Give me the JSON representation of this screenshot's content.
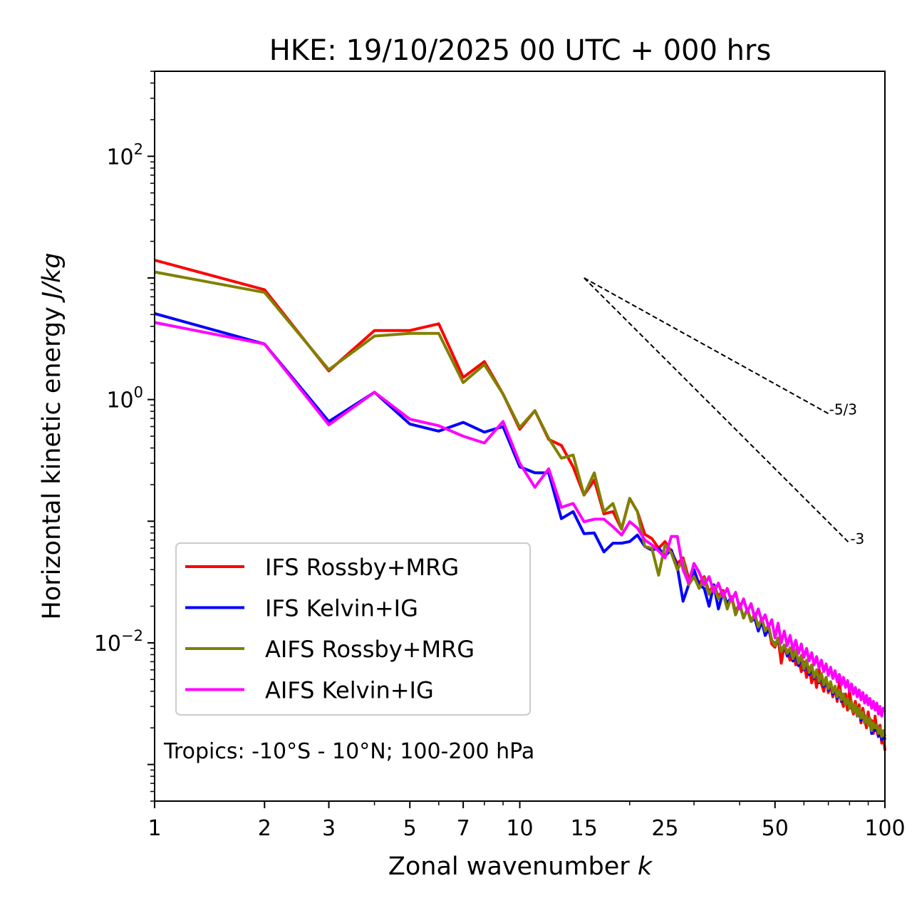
{
  "chart_data": {
    "type": "line",
    "title": "HKE: 19/10/2025 00 UTC + 000 hrs",
    "xlabel": "Zonal wavenumber",
    "xlabel_italic_suffix": "k",
    "ylabel": "Horizontal kinetic energy",
    "ylabel_italic_suffix": "J/kg",
    "xscale": "log",
    "yscale": "log",
    "xlim": [
      1,
      100
    ],
    "ylim": [
      0.0005,
      500
    ],
    "grid": false,
    "x_ticks": [
      1,
      2,
      3,
      5,
      7,
      10,
      15,
      25,
      50,
      100
    ],
    "x_tick_labels": [
      "1",
      "2",
      "3",
      "5",
      "7",
      "10",
      "15",
      "25",
      "50",
      "100"
    ],
    "y_ticks": [
      {
        "value": 100,
        "base": "10",
        "exp": "2"
      },
      {
        "value": 1,
        "base": "10",
        "exp": "0"
      },
      {
        "value": 0.01,
        "base": "10",
        "exp": "−2"
      }
    ],
    "annotation": "Tropics: -10°S - 10°N; 100-200 hPa",
    "legend_position": "lower-left",
    "reference_lines": [
      {
        "label": "-5/3",
        "slope": -1.6667,
        "k_start": 15,
        "E_start": 10,
        "k_end": 70,
        "style": "dashed",
        "color": "#000000"
      },
      {
        "label": "-3",
        "slope": -3,
        "k_start": 15,
        "E_start": 10,
        "k_end": 80,
        "style": "dashed",
        "color": "#000000"
      }
    ],
    "series": [
      {
        "name": "IFS Rossby+MRG",
        "color": "#ff0000",
        "values": [
          14.0,
          8.0,
          1.72,
          3.7,
          3.7,
          4.2,
          1.52,
          2.05,
          1.11,
          0.57,
          0.81,
          0.47,
          0.42,
          0.28,
          0.164,
          0.218,
          0.115,
          0.12,
          0.086,
          0.154,
          0.12,
          0.078,
          0.072,
          0.06,
          0.068,
          0.056,
          0.045,
          0.05,
          0.034,
          0.036,
          0.031,
          0.035,
          0.026,
          0.03,
          0.024,
          0.027,
          0.02,
          0.024,
          0.018,
          0.021,
          0.016,
          0.019,
          0.015,
          0.017,
          0.013,
          0.016,
          0.012,
          0.0135,
          0.0098,
          0.0092,
          0.011,
          0.0068,
          0.0095,
          0.0085,
          0.0072,
          0.0088,
          0.0066,
          0.0075,
          0.0058,
          0.007,
          0.0052,
          0.0063,
          0.0047,
          0.0056,
          0.0043,
          0.0061,
          0.0046,
          0.004,
          0.0052,
          0.0039,
          0.0045,
          0.0036,
          0.0044,
          0.0033,
          0.0048,
          0.0034,
          0.003,
          0.0038,
          0.0028,
          0.0041,
          0.003,
          0.0026,
          0.0033,
          0.0025,
          0.0031,
          0.0022,
          0.0029,
          0.0024,
          0.002,
          0.0027,
          0.0021,
          0.0023,
          0.0018,
          0.0025,
          0.0019,
          0.0017,
          0.0021,
          0.0015,
          0.0018,
          0.0013
        ]
      },
      {
        "name": "IFS Kelvin+IG",
        "color": "#0000ff",
        "values": [
          5.1,
          2.86,
          0.66,
          1.15,
          0.63,
          0.55,
          0.65,
          0.54,
          0.6,
          0.28,
          0.25,
          0.25,
          0.105,
          0.12,
          0.079,
          0.08,
          0.056,
          0.066,
          0.066,
          0.068,
          0.077,
          0.062,
          0.058,
          0.06,
          0.052,
          0.058,
          0.042,
          0.022,
          0.03,
          0.04,
          0.03,
          0.028,
          0.02,
          0.03,
          0.019,
          0.026,
          0.021,
          0.024,
          0.017,
          0.021,
          0.016,
          0.019,
          0.015,
          0.016,
          0.0125,
          0.015,
          0.0115,
          0.013,
          0.0105,
          0.0098,
          0.0105,
          0.0085,
          0.0096,
          0.0078,
          0.0088,
          0.0071,
          0.0082,
          0.0065,
          0.0076,
          0.006,
          0.0068,
          0.0055,
          0.0062,
          0.0051,
          0.0058,
          0.0047,
          0.0054,
          0.0044,
          0.005,
          0.0041,
          0.0047,
          0.0038,
          0.0043,
          0.0035,
          0.004,
          0.0033,
          0.0037,
          0.0031,
          0.0034,
          0.0029,
          0.0032,
          0.0027,
          0.003,
          0.0025,
          0.0028,
          0.0023,
          0.0027,
          0.0022,
          0.0025,
          0.0021,
          0.0023,
          0.0018,
          0.0022,
          0.0019,
          0.0021,
          0.0017,
          0.002,
          0.0016,
          0.0018,
          0.0016
        ]
      },
      {
        "name": "AIFS Rossby+MRG",
        "color": "#808000",
        "values": [
          11.2,
          7.6,
          1.76,
          3.33,
          3.5,
          3.5,
          1.38,
          1.94,
          1.11,
          0.59,
          0.81,
          0.48,
          0.33,
          0.35,
          0.164,
          0.25,
          0.12,
          0.14,
          0.086,
          0.154,
          0.12,
          0.062,
          0.06,
          0.036,
          0.064,
          0.055,
          0.04,
          0.048,
          0.03,
          0.035,
          0.028,
          0.034,
          0.025,
          0.029,
          0.023,
          0.026,
          0.019,
          0.024,
          0.017,
          0.021,
          0.016,
          0.019,
          0.015,
          0.0175,
          0.0135,
          0.016,
          0.0125,
          0.014,
          0.0105,
          0.0095,
          0.011,
          0.0085,
          0.0096,
          0.0082,
          0.0091,
          0.0074,
          0.0088,
          0.0068,
          0.0079,
          0.0061,
          0.0072,
          0.0057,
          0.0066,
          0.0052,
          0.006,
          0.0048,
          0.0056,
          0.0045,
          0.0052,
          0.0042,
          0.0048,
          0.0039,
          0.0044,
          0.0036,
          0.0041,
          0.0034,
          0.0038,
          0.0031,
          0.0035,
          0.0029,
          0.0033,
          0.0027,
          0.0031,
          0.0025,
          0.0029,
          0.0024,
          0.0027,
          0.0022,
          0.0025,
          0.0021,
          0.0024,
          0.0019,
          0.0022,
          0.002,
          0.0021,
          0.0018,
          0.002,
          0.0017,
          0.0019,
          0.0017
        ]
      },
      {
        "name": "AIFS Kelvin+IG",
        "color": "#ff00ff",
        "values": [
          4.3,
          2.86,
          0.62,
          1.15,
          0.69,
          0.61,
          0.5,
          0.44,
          0.66,
          0.3,
          0.19,
          0.27,
          0.13,
          0.14,
          0.099,
          0.104,
          0.104,
          0.09,
          0.077,
          0.099,
          0.088,
          0.07,
          0.064,
          0.057,
          0.05,
          0.075,
          0.075,
          0.04,
          0.031,
          0.045,
          0.038,
          0.03,
          0.035,
          0.026,
          0.031,
          0.024,
          0.028,
          0.022,
          0.026,
          0.019,
          0.023,
          0.018,
          0.021,
          0.016,
          0.019,
          0.015,
          0.017,
          0.0135,
          0.0155,
          0.011,
          0.0145,
          0.01,
          0.0125,
          0.0095,
          0.0115,
          0.0088,
          0.0105,
          0.0082,
          0.0098,
          0.0076,
          0.009,
          0.0071,
          0.0083,
          0.0066,
          0.0077,
          0.0062,
          0.0072,
          0.0058,
          0.0067,
          0.0054,
          0.0063,
          0.0051,
          0.0059,
          0.0048,
          0.0055,
          0.0045,
          0.0052,
          0.0043,
          0.0049,
          0.004,
          0.0046,
          0.0038,
          0.0043,
          0.0036,
          0.0041,
          0.0034,
          0.0039,
          0.0032,
          0.0037,
          0.0031,
          0.0035,
          0.0029,
          0.0033,
          0.0028,
          0.0032,
          0.0026,
          0.003,
          0.0025,
          0.0029,
          0.0027
        ]
      }
    ]
  }
}
